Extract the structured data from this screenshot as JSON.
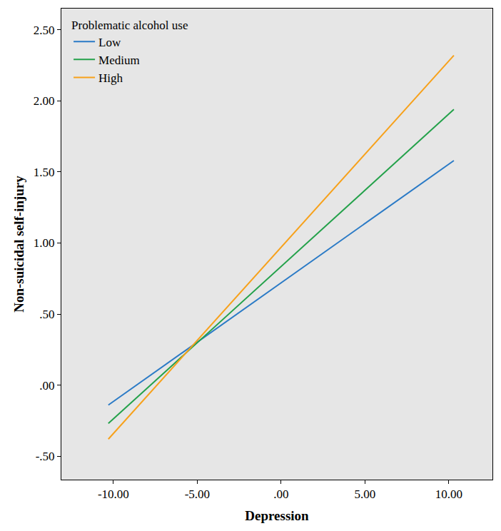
{
  "chart_data": {
    "type": "line",
    "x_label": "Depression",
    "y_label": "Non-suicidal self-injury",
    "legend_title": "Problematic alcohol use",
    "legend": "upper left",
    "grid": false,
    "series": [
      {
        "name": "Low",
        "color": "#2a7ac6",
        "x": [
          -10.3,
          10.3
        ],
        "values": [
          -0.14,
          1.58
        ]
      },
      {
        "name": "Medium",
        "color": "#23a14a",
        "x": [
          -10.3,
          10.3
        ],
        "values": [
          -0.27,
          1.94
        ]
      },
      {
        "name": "High",
        "color": "#f7a11a",
        "x": [
          -10.3,
          10.3
        ],
        "values": [
          -0.38,
          2.32
        ]
      }
    ],
    "xlim": [
      -13.1,
      12.6
    ],
    "xticks": [
      {
        "value": -10,
        "label": "-10.00"
      },
      {
        "value": -5,
        "label": "-5.00"
      },
      {
        "value": 0,
        "label": ".00"
      },
      {
        "value": 5,
        "label": "5.00"
      },
      {
        "value": 10,
        "label": "10.00"
      }
    ],
    "ylim": [
      -0.665,
      2.65
    ],
    "yticks": [
      {
        "value": -0.5,
        "label": "-.50"
      },
      {
        "value": 0,
        "label": ".00"
      },
      {
        "value": 0.5,
        "label": ".50"
      },
      {
        "value": 1,
        "label": "1.00"
      },
      {
        "value": 1.5,
        "label": "1.50"
      },
      {
        "value": 2,
        "label": "2.00"
      },
      {
        "value": 2.5,
        "label": "2.50"
      }
    ]
  }
}
